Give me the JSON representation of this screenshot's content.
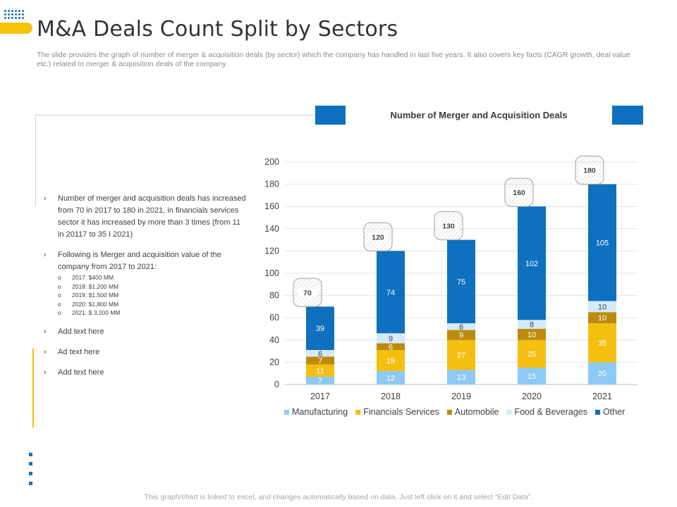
{
  "header": {
    "title": "M&A Deals Count Split by Sectors",
    "subtitle": "The slide provides the graph of number of merger & acquisition deals (by sector) which the company has handled in last five years. It also covers key facts (CAGR growth, deal value etc.) related to merger & acquisition deals of the company."
  },
  "bullets": {
    "arrow": "›",
    "circle": "o",
    "b1": "Number of merger and acquisition deals has increased from 70 in 2017 to 180 in 2021, in financials services sector it has increased by more than 3 times (from 11 in 20117 to 35 I 2021)",
    "b2": "Following is Merger and acquisition value of the company from 2017 to 2021:",
    "values": [
      "2017: $400 MM",
      "2018: $1,200 MM",
      "2019: $1,500 MM",
      "2020: $1,800 MM",
      "2021: $ 3,200 MM"
    ],
    "b3": "Add text here",
    "b4": "Ad text here",
    "b5": "Add text here"
  },
  "footer": {
    "text": "This graph/chart is linked to excel, and changes automatically based on data. Just left click on it and select “Edit Data”."
  },
  "chart_data": {
    "type": "bar",
    "stacked": true,
    "title": "Number of Merger and Acquisition Deals",
    "categories": [
      "2017",
      "2018",
      "2019",
      "2020",
      "2021"
    ],
    "series": [
      {
        "name": "Manufacturing",
        "values": [
          7,
          12,
          13,
          15,
          20
        ],
        "color": "#8ccaf5",
        "label_color": "#ffffff"
      },
      {
        "name": "Financials Services",
        "values": [
          11,
          19,
          27,
          25,
          35
        ],
        "color": "#f5bf12",
        "label_color": "#ffffff"
      },
      {
        "name": "Automobile",
        "values": [
          7,
          6,
          9,
          10,
          10
        ],
        "color": "#bc8a0d",
        "label_color": "#ffffff"
      },
      {
        "name": "Food & Beverages",
        "values": [
          6,
          9,
          6,
          8,
          10
        ],
        "color": "#d4ebfa",
        "label_color": "#404040"
      },
      {
        "name": "Other",
        "values": [
          39,
          74,
          75,
          102,
          105
        ],
        "color": "#0e70be",
        "label_color": "#ffffff"
      }
    ],
    "totals": [
      70,
      120,
      130,
      160,
      180
    ],
    "yticks": [
      0,
      20,
      40,
      60,
      80,
      100,
      120,
      140,
      160,
      180,
      200
    ],
    "ylim": [
      0,
      200
    ],
    "xlabel": "",
    "ylabel": "",
    "legend": "bottom"
  }
}
